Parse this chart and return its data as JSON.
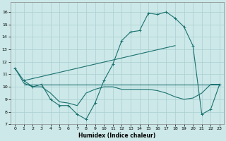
{
  "xlabel": "Humidex (Indice chaleur)",
  "background_color": "#cce8e8",
  "grid_color": "#aacfcf",
  "line_color": "#1a7070",
  "xlim": [
    -0.5,
    23.5
  ],
  "ylim": [
    7,
    16.8
  ],
  "xticks": [
    0,
    1,
    2,
    3,
    4,
    5,
    6,
    7,
    8,
    9,
    10,
    11,
    12,
    13,
    14,
    15,
    16,
    17,
    18,
    19,
    20,
    21,
    22,
    23
  ],
  "yticks": [
    7,
    8,
    9,
    10,
    11,
    12,
    13,
    14,
    15,
    16
  ],
  "curve1_x": [
    0,
    1,
    2,
    3,
    4,
    5,
    6,
    7,
    8,
    9,
    10,
    11,
    12,
    13,
    14,
    15,
    16,
    17,
    18,
    19,
    20,
    21,
    22,
    23
  ],
  "curve1_y": [
    11.5,
    10.5,
    10.0,
    10.2,
    9.0,
    8.5,
    8.5,
    7.8,
    7.4,
    8.7,
    10.5,
    11.8,
    13.7,
    14.4,
    14.5,
    15.9,
    15.8,
    16.0,
    15.5,
    14.8,
    13.3,
    7.8,
    8.2,
    10.2
  ],
  "curve2_x": [
    1,
    23
  ],
  "curve2_y": [
    10.2,
    10.2
  ],
  "curve3_x": [
    1,
    18
  ],
  "curve3_y": [
    10.5,
    13.3
  ],
  "curve4_x": [
    0,
    1,
    2,
    3,
    4,
    5,
    6,
    7,
    8,
    9,
    10,
    11,
    12,
    13,
    14,
    15,
    16,
    17,
    18,
    19,
    20,
    21,
    22,
    23
  ],
  "curve4_y": [
    11.5,
    10.3,
    10.0,
    10.0,
    9.5,
    8.8,
    8.7,
    8.5,
    9.5,
    9.8,
    10.0,
    10.0,
    9.8,
    9.8,
    9.8,
    9.8,
    9.7,
    9.5,
    9.2,
    9.0,
    9.1,
    9.5,
    10.2,
    10.2
  ]
}
